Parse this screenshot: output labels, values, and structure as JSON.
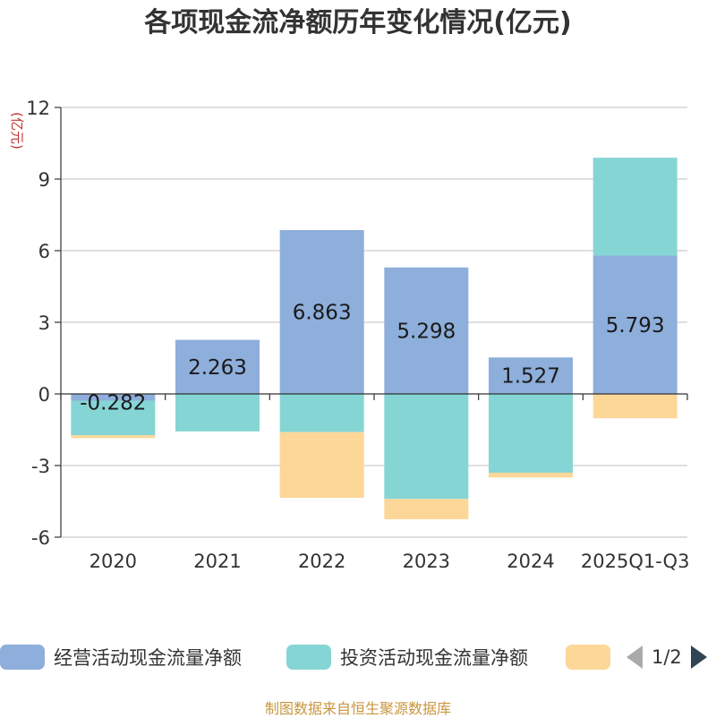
{
  "chart_data": {
    "type": "bar",
    "stacked": true,
    "title": "各项现金流净额历年变化情况(亿元)",
    "ylabel": "(亿元)",
    "categories": [
      "2020",
      "2021",
      "2022",
      "2023",
      "2024",
      "2025Q1-Q3"
    ],
    "ylim": [
      -6,
      12
    ],
    "yticks": [
      -6,
      -3,
      0,
      3,
      6,
      9,
      12
    ],
    "grid": true,
    "series": [
      {
        "name": "经营活动现金流量净额",
        "color": "#8eaedb",
        "values": [
          -0.282,
          2.263,
          6.863,
          5.298,
          1.527,
          5.793
        ],
        "labels": [
          "-0.282",
          "2.263",
          "6.863",
          "5.298",
          "1.527",
          "5.793"
        ]
      },
      {
        "name": "投资活动现金流量净额",
        "color": "#86d5d5",
        "values": [
          -1.45,
          -1.57,
          -1.6,
          -4.4,
          -3.3,
          4.1
        ]
      },
      {
        "name": "",
        "color": "#fdd798",
        "values": [
          -0.12,
          0.0,
          -2.75,
          -0.85,
          -0.2,
          -1.02
        ]
      }
    ],
    "legend": {
      "pager": "1/2"
    },
    "source": "制图数据来自恒生聚源数据库"
  }
}
